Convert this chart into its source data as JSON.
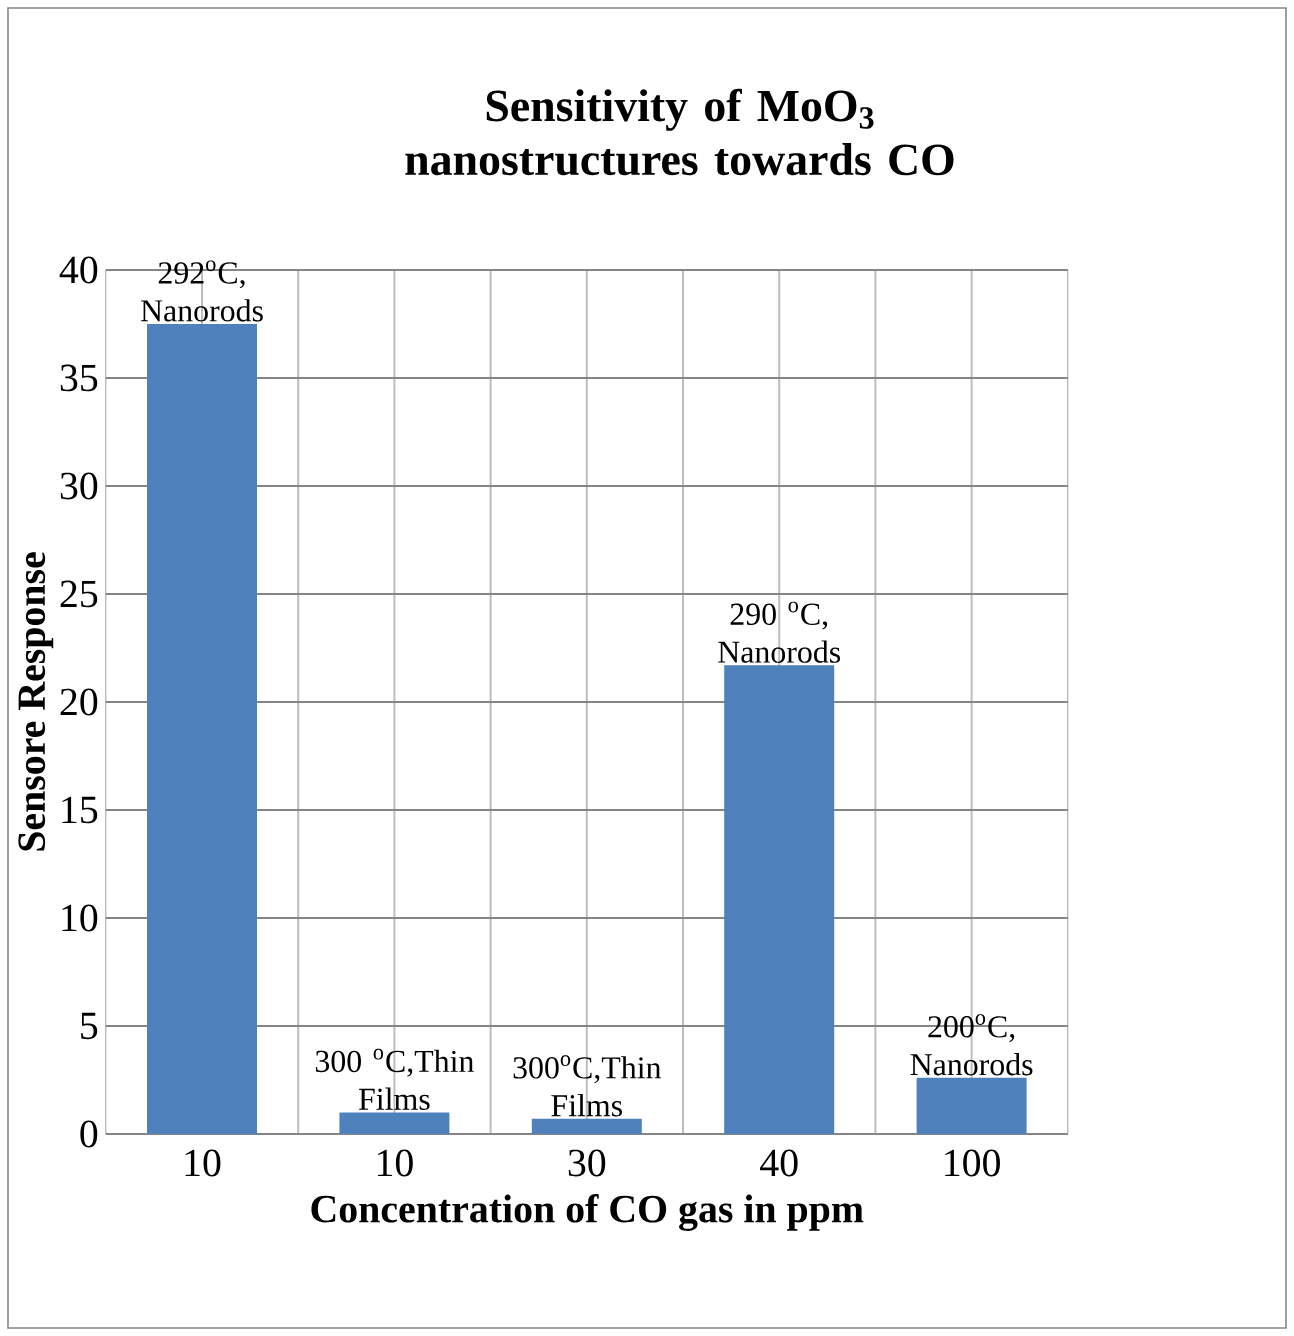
{
  "chart_data": {
    "type": "bar",
    "title": "Sensitivity of MoO$_{3}$ nanostructures towards CO",
    "xlabel": "Concentration of CO gas in ppm",
    "ylabel": "Sensore Response",
    "categories": [
      "10",
      "10",
      "30",
      "40",
      "100"
    ],
    "values": [
      37.5,
      1.0,
      0.7,
      21.7,
      2.6
    ],
    "color": "#4f81bd",
    "ylim": [
      0,
      40
    ],
    "yticks": [
      0,
      5,
      10,
      15,
      20,
      25,
      30,
      35,
      40
    ],
    "grid": true,
    "annotations": [
      "292$^{o}$C, Nanorods",
      "300 $^{o}$C,Thin Films",
      "300$^{o}$C,Thin Films",
      "290 $^{o}$C, Nanorods",
      "200$^{o}$C, Nanorods"
    ]
  }
}
